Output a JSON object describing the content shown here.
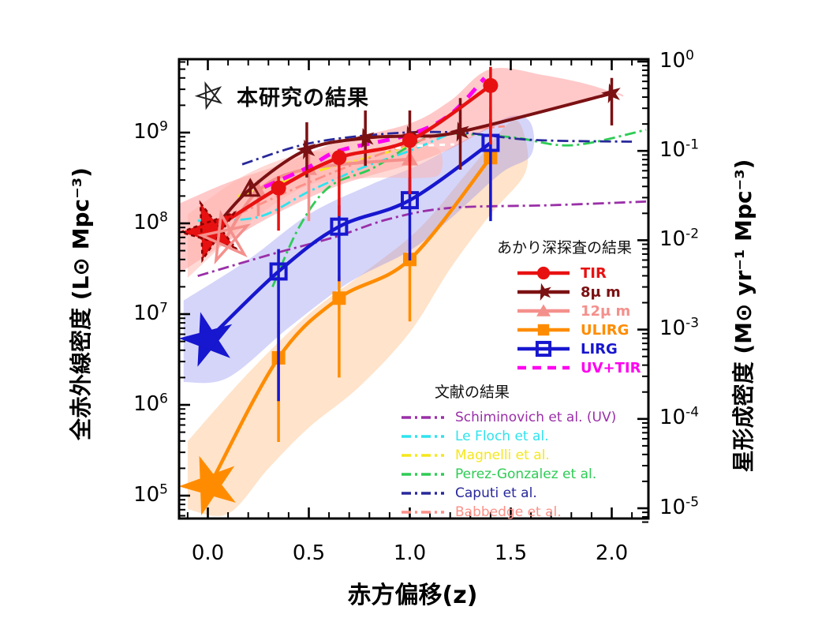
{
  "annotation": {
    "icon": "open-star-icon",
    "text": "本研究の結果"
  },
  "legend_akari": {
    "title": "あかり深探査の結果",
    "items": [
      {
        "label": "TIR",
        "color": "#e81111",
        "marker": "circle",
        "line": "solid"
      },
      {
        "label": "8μ m",
        "color": "#7b1113",
        "marker": "star",
        "line": "solid"
      },
      {
        "label": "12μ m",
        "color": "#f4908c",
        "marker": "triangle",
        "line": "solid"
      },
      {
        "label": "ULIRG",
        "color": "#ff8c00",
        "marker": "square",
        "line": "solid"
      },
      {
        "label": "LIRG",
        "color": "#1717cf",
        "marker": "square-open",
        "line": "solid"
      },
      {
        "label": "UV+TIR",
        "color": "#ff00f0",
        "marker": "none",
        "line": "dashed"
      }
    ]
  },
  "legend_literature": {
    "title": "文献の結果",
    "items": [
      {
        "label": "Schiminovich et al. (UV)",
        "color": "#9a2fa8",
        "line": "dashdot"
      },
      {
        "label": "Le Floch et al.",
        "color": "#2ee3ee",
        "line": "dashdot"
      },
      {
        "label": "Magnelli et al.",
        "color": "#f5e71c",
        "line": "dashdot"
      },
      {
        "label": "Perez-Gonzalez et al.",
        "color": "#2ecc55",
        "line": "dashdot"
      },
      {
        "label": "Caputi et al.",
        "color": "#28289b",
        "line": "dashdot"
      },
      {
        "label": "Babbedge et al.",
        "color": "#fb9088",
        "line": "dashdot"
      }
    ]
  },
  "chart_data": {
    "type": "line",
    "x_axis": {
      "label": "赤方偏移(z)",
      "tick_labels": [
        "0.0",
        "0.5",
        "1.0",
        "1.5",
        "2.0"
      ],
      "tick_values": [
        0,
        0.5,
        1.0,
        1.5,
        2.0
      ],
      "minor_step": 0.1,
      "range": [
        -0.143,
        2.174
      ]
    },
    "y_left": {
      "label": "全赤外線密度 (L⊙ Mpc⁻³)",
      "scale": "log",
      "tick_base": "10",
      "tick_exponents": [
        9,
        8,
        7,
        6,
        5
      ],
      "range_log": [
        4.75,
        9.81
      ]
    },
    "y_right": {
      "label": "星形成密度 (M⊙ yr⁻¹ Mpc⁻³)",
      "scale": "log",
      "tick_base": "10",
      "tick_exponents": [
        0,
        -1,
        -2,
        -3,
        -4,
        -5
      ],
      "range_log": [
        -5.17,
        0.03
      ]
    },
    "series": [
      {
        "key": "mu12",
        "name": "12μ m",
        "color": "#f4908c",
        "marker": "triangle",
        "line_width": 4,
        "x": [
          0.25,
          0.5,
          1.0
        ],
        "y": [
          230000000.0,
          400000000.0,
          510000000.0
        ],
        "err_lo": [
          120000000.0,
          106000000.0,
          135000000.0
        ],
        "err_hi": [
          300000000.0,
          710000000.0,
          820000000.0
        ],
        "star": {
          "z": 0.09,
          "v": 69000000.0
        }
      },
      {
        "key": "ulirg",
        "name": "ULIRG",
        "color": "#ff8c00",
        "marker": "square",
        "line_width": 4.5,
        "x": [
          0.35,
          0.65,
          1.0,
          1.4
        ],
        "y": [
          3300000.0,
          15000000.0,
          40000000.0,
          530000000.0
        ],
        "err_lo": [
          390000.0,
          2000000.0,
          8300000.0,
          120000000.0
        ],
        "err_hi": [
          8300000.0,
          26000000.0,
          61000000.0,
          1900000000.0
        ],
        "star": {
          "z": 0.01,
          "v": 130000.0
        }
      },
      {
        "key": "lirg",
        "name": "LIRG",
        "color": "#1717cf",
        "marker": "square-open",
        "line_width": 4.5,
        "x": [
          0.35,
          0.65,
          1.0,
          1.4
        ],
        "y": [
          29500000.0,
          92000000.0,
          180000000.0,
          770000000.0
        ],
        "err_lo": [
          1100000.0,
          23000000.0,
          39000000.0,
          106000000.0
        ],
        "err_hi": [
          52000000.0,
          158000000.0,
          320000000.0,
          1400000000.0
        ],
        "star": {
          "z": 0.0,
          "v": 5200000.0
        }
      },
      {
        "key": "uvtir",
        "name": "UV+TIR",
        "color": "#ff00f0",
        "marker": "none",
        "line_width": 5,
        "dash": "15 11",
        "points_zlog": [
          [
            0.28,
            8.4
          ],
          [
            0.5,
            8.62
          ],
          [
            0.65,
            8.8
          ],
          [
            1.0,
            8.98
          ],
          [
            1.2,
            9.2
          ],
          [
            1.37,
            9.6
          ]
        ]
      },
      {
        "key": "mu8",
        "name": "8μ m",
        "color": "#7b1113",
        "marker": "star",
        "line_width": 4,
        "x": [
          0.21,
          0.49,
          0.78,
          1.0,
          1.25,
          2.0
        ],
        "y": [
          240000000.0,
          650000000.0,
          870000000.0,
          920000000.0,
          1020000000.0,
          2700000000.0
        ],
        "err_lo": [
          200000000.0,
          320000000.0,
          430000000.0,
          480000000.0,
          390000000.0,
          1200000000.0
        ],
        "err_hi": [
          300000000.0,
          1300000000.0,
          1750000000.0,
          1750000000.0,
          2400000000.0,
          4000000000.0
        ],
        "point_markers": [
          "triangle-open",
          "star",
          "star",
          "star",
          "star",
          "star"
        ],
        "star": {
          "z": 0.02,
          "v": 82000000.0
        }
      },
      {
        "key": "tir",
        "name": "TIR",
        "color": "#e81111",
        "marker": "circle",
        "line_width": 4.5,
        "x": [
          0.35,
          0.65,
          1.0,
          1.4
        ],
        "y": [
          245000000.0,
          530000000.0,
          820000000.0,
          3300000000.0
        ],
        "err_lo": [
          83000000.0,
          120000000.0,
          210000000.0,
          740000000.0
        ],
        "err_hi": [
          330000000.0,
          650000000.0,
          960000000.0,
          5300000000.0
        ],
        "star": {
          "z": 0.014,
          "v": 82000000.0
        }
      }
    ],
    "literature": [
      {
        "name": "Schiminovich et al. (UV)",
        "color": "#9a2fa8",
        "points_zlog": [
          [
            -0.05,
            7.42
          ],
          [
            0.3,
            7.65
          ],
          [
            0.63,
            7.85
          ],
          [
            0.9,
            8.05
          ],
          [
            1.2,
            8.17
          ],
          [
            1.7,
            8.2
          ],
          [
            2.17,
            8.24
          ]
        ]
      },
      {
        "name": "Le Floch et al.",
        "color": "#2ee3ee",
        "points_zlog": [
          [
            -0.05,
            8.03
          ],
          [
            0.25,
            8.07
          ],
          [
            0.5,
            8.35
          ],
          [
            0.75,
            8.6
          ],
          [
            1.0,
            8.8
          ],
          [
            1.18,
            8.97
          ]
        ]
      },
      {
        "name": "Magnelli et al.",
        "color": "#f5e71c",
        "points_zlog": [
          [
            0.15,
            8.3
          ],
          [
            0.5,
            8.55
          ],
          [
            0.8,
            8.73
          ],
          [
            1.0,
            8.85
          ]
        ]
      },
      {
        "name": "Perez-Gonzalez et al.",
        "color": "#2ecc55",
        "points_zlog": [
          [
            0.32,
            7.3
          ],
          [
            0.45,
            7.95
          ],
          [
            0.6,
            8.4
          ],
          [
            0.81,
            8.6
          ],
          [
            1.0,
            8.85
          ],
          [
            1.16,
            8.98
          ],
          [
            1.5,
            8.95
          ],
          [
            1.8,
            8.86
          ],
          [
            2.17,
            9.03
          ]
        ]
      },
      {
        "name": "Caputi et al.",
        "color": "#28289b",
        "points_zlog": [
          [
            0.17,
            8.65
          ],
          [
            0.5,
            8.88
          ],
          [
            0.9,
            8.99
          ],
          [
            1.25,
            9.0
          ],
          [
            1.6,
            8.92
          ],
          [
            2.1,
            8.9
          ]
        ]
      },
      {
        "name": "Babbedge et al.",
        "color": "#fb9088",
        "points_zlog": [
          [
            0.05,
            8.0
          ],
          [
            0.5,
            8.45
          ],
          [
            0.9,
            8.8
          ],
          [
            1.2,
            9.0
          ],
          [
            1.47,
            9.07
          ]
        ]
      }
    ],
    "white_guide": [
      [
        0.82,
        8.8
      ],
      [
        1.02,
        8.85
      ],
      [
        1.22,
        8.87
      ]
    ],
    "bands": [
      {
        "name": "ulirg-band",
        "color": "#ffb066",
        "opacity": 0.35,
        "upper": [
          [
            -0.1,
            5.6
          ],
          [
            0.2,
            6.35
          ],
          [
            0.5,
            7.0
          ],
          [
            0.8,
            7.5
          ],
          [
            1.05,
            7.95
          ],
          [
            1.3,
            8.6
          ],
          [
            1.5,
            9.12
          ],
          [
            1.57,
            8.95
          ]
        ],
        "lower": [
          [
            1.57,
            8.55
          ],
          [
            1.4,
            8.1
          ],
          [
            1.2,
            7.5
          ],
          [
            1.0,
            6.8
          ],
          [
            0.75,
            6.2
          ],
          [
            0.5,
            5.75
          ],
          [
            0.3,
            5.3
          ],
          [
            0.1,
            4.8
          ],
          [
            -0.1,
            4.85
          ]
        ]
      },
      {
        "name": "lirg-band",
        "color": "#7d7dee",
        "opacity": 0.32,
        "upper": [
          [
            -0.12,
            7.15
          ],
          [
            0.2,
            7.6
          ],
          [
            0.5,
            8.1
          ],
          [
            0.8,
            8.42
          ],
          [
            1.05,
            8.65
          ],
          [
            1.3,
            8.95
          ],
          [
            1.5,
            9.18
          ],
          [
            1.6,
            9.1
          ]
        ],
        "lower": [
          [
            1.6,
            8.75
          ],
          [
            1.45,
            8.55
          ],
          [
            1.2,
            8.05
          ],
          [
            1.0,
            7.7
          ],
          [
            0.7,
            7.35
          ],
          [
            0.4,
            6.85
          ],
          [
            0.1,
            6.3
          ],
          [
            -0.12,
            6.25
          ]
        ]
      },
      {
        "name": "tir-band",
        "color": "#ff5a5a",
        "opacity": 0.33,
        "upper": [
          [
            -0.14,
            8.22
          ],
          [
            0.1,
            8.45
          ],
          [
            0.35,
            8.64
          ],
          [
            0.65,
            8.9
          ],
          [
            1.0,
            9.1
          ],
          [
            1.2,
            9.35
          ],
          [
            1.4,
            9.7
          ],
          [
            1.67,
            9.63
          ],
          [
            1.9,
            9.52
          ],
          [
            2.05,
            9.4
          ]
        ],
        "lower": [
          [
            2.0,
            9.43
          ],
          [
            1.7,
            9.27
          ],
          [
            1.4,
            9.05
          ],
          [
            1.2,
            8.82
          ],
          [
            1.0,
            8.65
          ],
          [
            0.65,
            8.42
          ],
          [
            0.35,
            8.12
          ],
          [
            0.1,
            7.8
          ],
          [
            -0.14,
            7.45
          ]
        ]
      },
      {
        "name": "12um-band",
        "color": "#ffb3ab",
        "opacity": 0.5,
        "upper": [
          [
            -0.1,
            8.1
          ],
          [
            0.2,
            8.55
          ],
          [
            0.5,
            8.78
          ],
          [
            0.8,
            8.78
          ],
          [
            1.05,
            8.85
          ],
          [
            1.15,
            8.8
          ]
        ],
        "lower": [
          [
            1.15,
            8.55
          ],
          [
            1.05,
            8.5
          ],
          [
            0.8,
            8.5
          ],
          [
            0.5,
            8.42
          ],
          [
            0.2,
            8.0
          ],
          [
            -0.1,
            7.4
          ]
        ]
      }
    ],
    "stars": [
      {
        "name": "tir-star",
        "z": 0.014,
        "v": 82000000.0,
        "r": 38,
        "rot": -20,
        "fill": "#e81111",
        "stroke": "#8b0000",
        "dash": "5 4",
        "width": 2.5
      },
      {
        "name": "12um-star",
        "z": 0.09,
        "v": 69000000.0,
        "r": 31,
        "rot": -12,
        "fill": "none",
        "stroke": "#f4908c",
        "dash": "",
        "width": 3.5
      },
      {
        "name": "lirg-star",
        "z": 0.0,
        "v": 5200000.0,
        "r": 35,
        "rot": -15,
        "fill": "#1717cf",
        "stroke": "#1717cf",
        "dash": "",
        "width": 1
      },
      {
        "name": "ulirg-star",
        "z": 0.01,
        "v": 130000.0,
        "r": 38,
        "rot": -20,
        "fill": "#ff8c00",
        "stroke": "#ff8c00",
        "dash": "",
        "width": 1
      }
    ]
  }
}
